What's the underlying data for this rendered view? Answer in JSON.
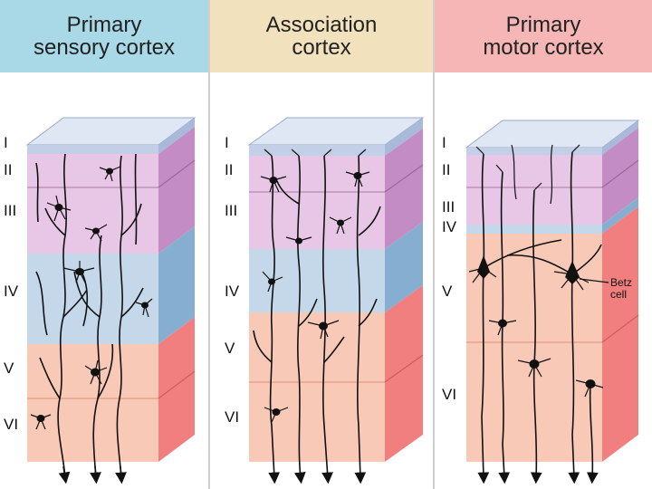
{
  "panels": [
    {
      "title": "Primary\nsensory cortex",
      "header_color": "#a9d8e6",
      "layer_labels": [
        "I",
        "II",
        "III",
        "IV",
        "V",
        "VI"
      ]
    },
    {
      "title": "Association\ncortex",
      "header_color": "#f2e1bd",
      "layer_labels": [
        "I",
        "II",
        "III",
        "IV",
        "V",
        "VI"
      ]
    },
    {
      "title": "Primary\nmotor cortex",
      "header_color": "#f7b6b6",
      "layer_labels": [
        "I",
        "II",
        "III",
        "IV",
        "V",
        "VI"
      ],
      "annotation": [
        "Betz",
        "cell"
      ]
    }
  ],
  "colors": {
    "layer_I": "#c3cfe6",
    "layer_II_III": "#e7c6e6",
    "layer_IV": "#c4d8ea",
    "layer_V_VI": "#f8c9b6",
    "side_purple": "#c48cc4",
    "side_blue": "#86aed0",
    "side_red": "#f27f7f",
    "neuron": "#111111"
  }
}
